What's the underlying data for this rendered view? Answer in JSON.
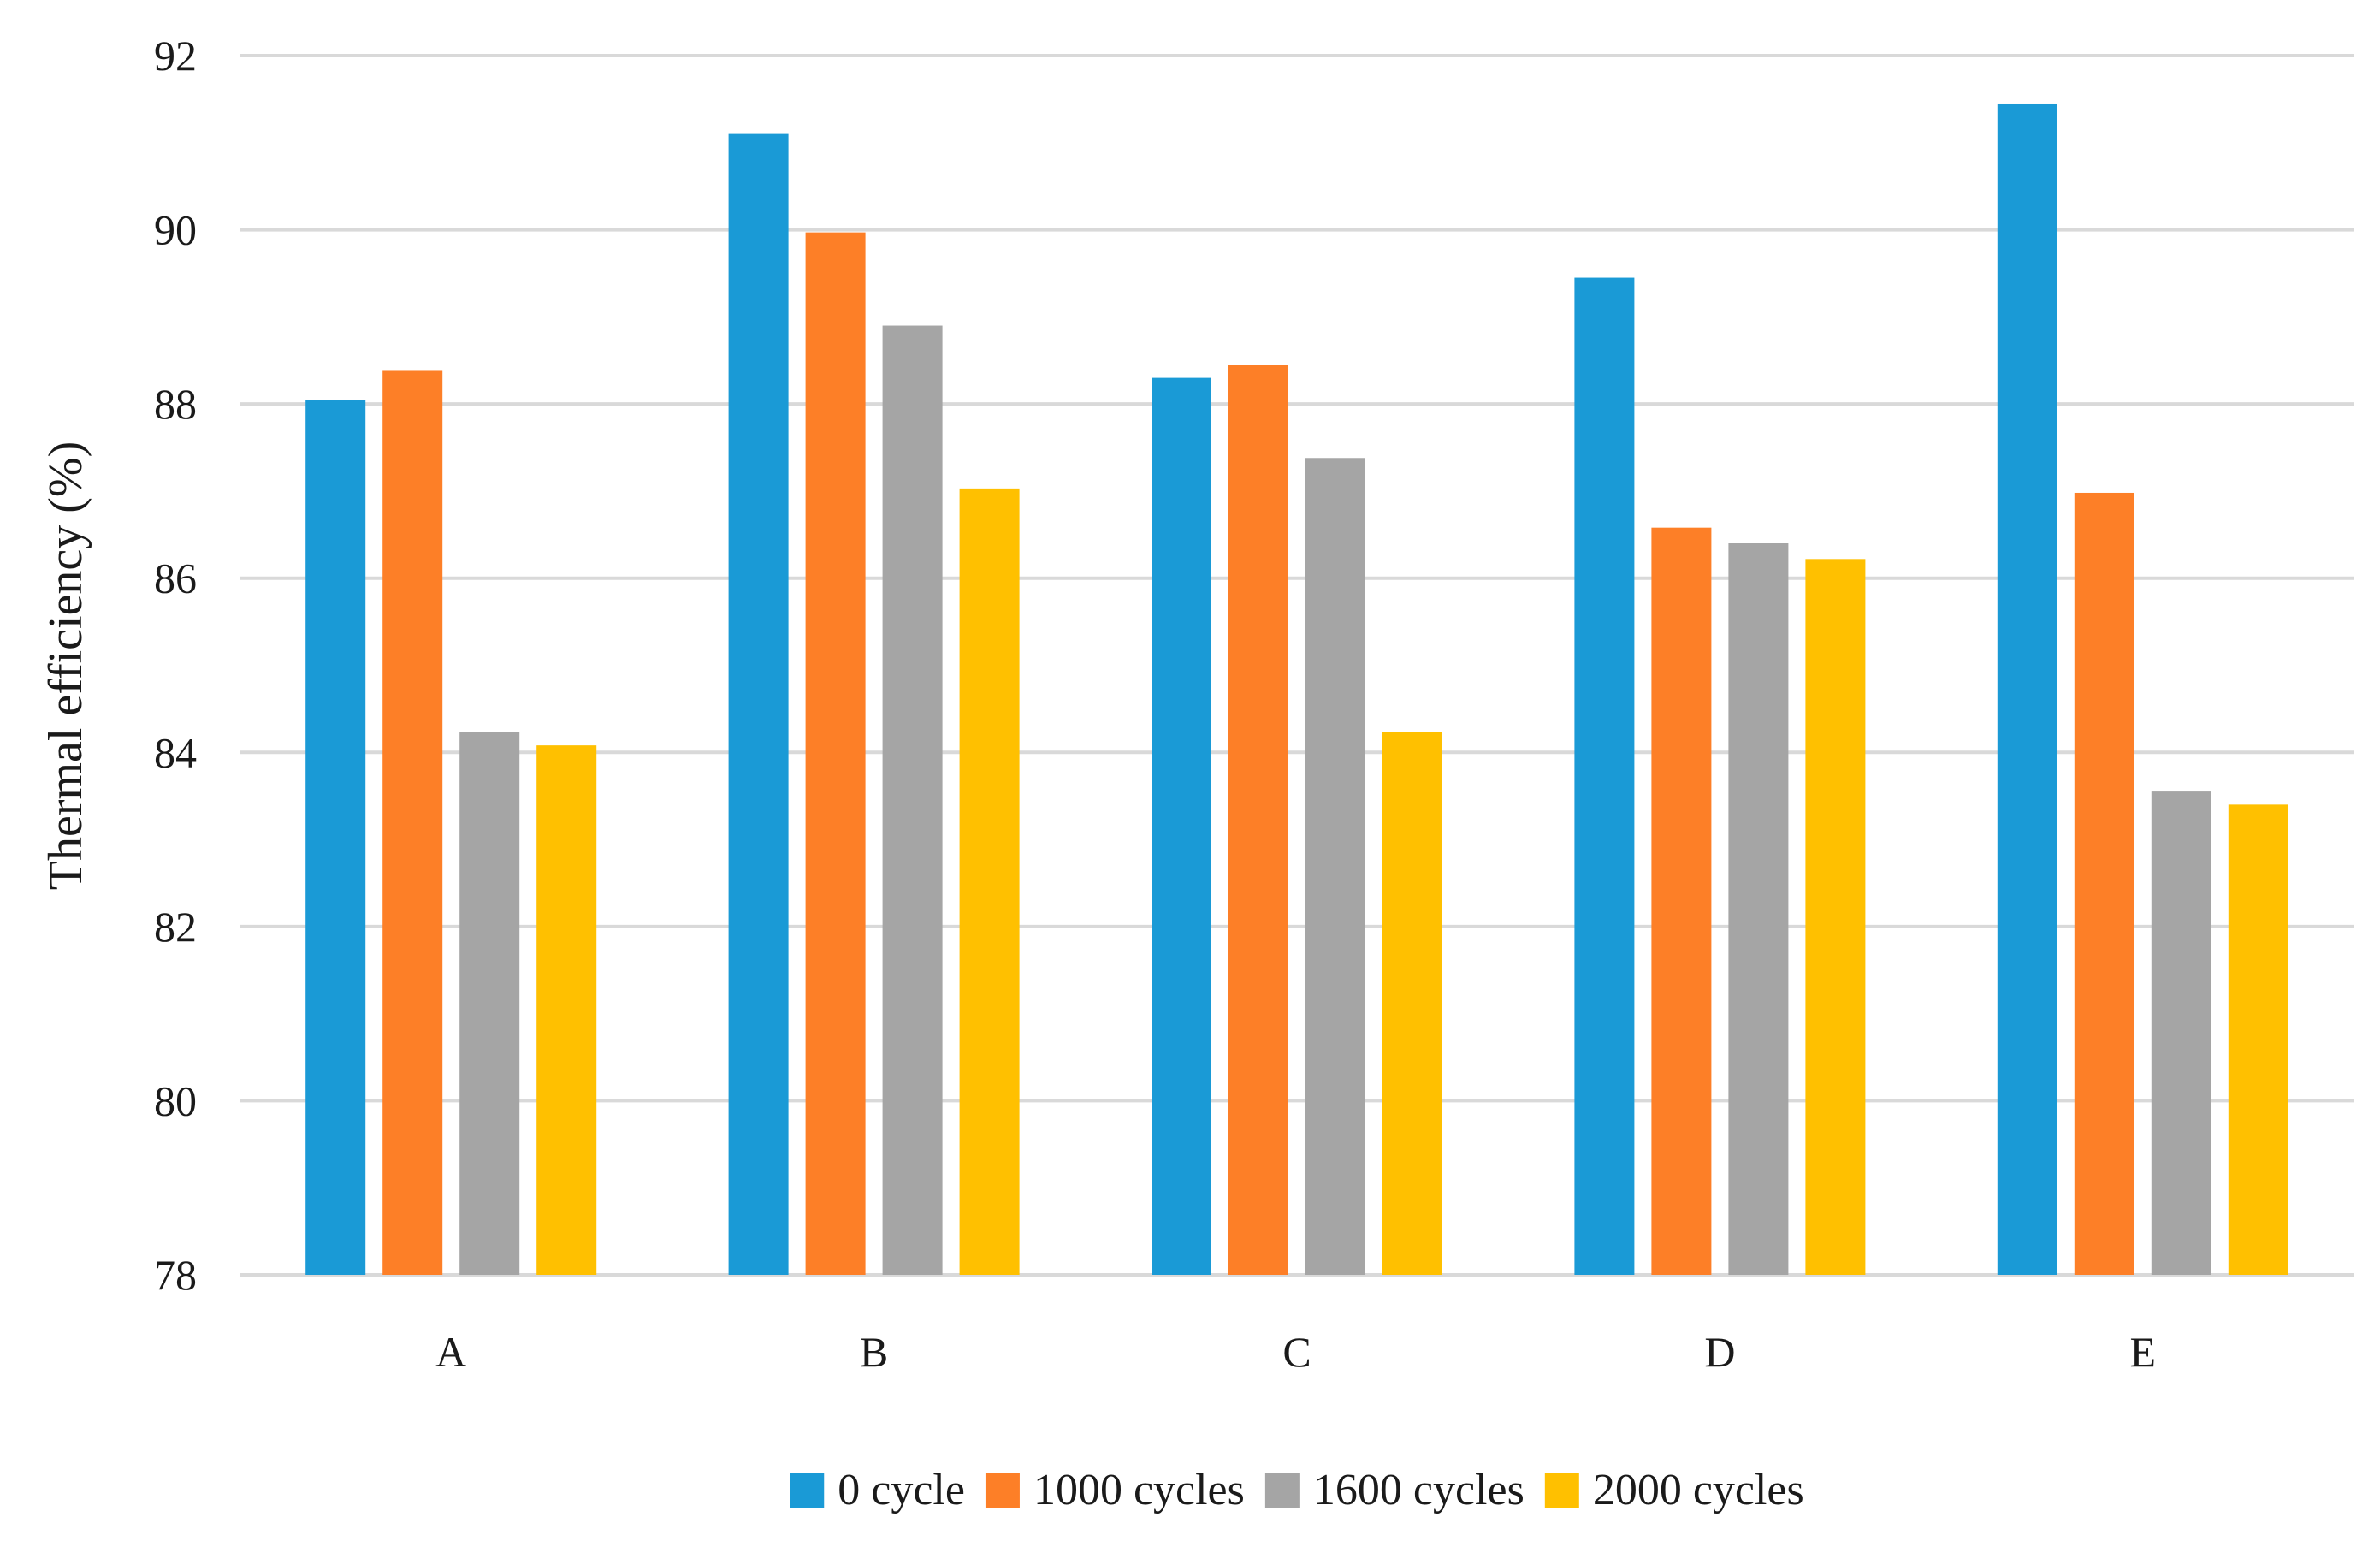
{
  "chart_data": {
    "type": "bar",
    "title": "",
    "xlabel": "",
    "ylabel": "Thermal efficiency (%)",
    "ylim": [
      78,
      92
    ],
    "yticks": [
      78,
      80,
      82,
      84,
      86,
      88,
      90,
      92
    ],
    "ytick_labels": [
      "78",
      "80",
      "82",
      "84",
      "86",
      "88",
      "90",
      "92"
    ],
    "grid": true,
    "legend_position": "bottom",
    "categories": [
      "A",
      "B",
      "C",
      "D",
      "E"
    ],
    "series": [
      {
        "name": "0 cycle",
        "color": "#1a9ad6",
        "values": [
          88.05,
          91.1,
          88.3,
          89.45,
          91.45
        ]
      },
      {
        "name": "1000 cycles",
        "color": "#fd7f27",
        "values": [
          88.38,
          89.97,
          88.45,
          86.58,
          86.98
        ]
      },
      {
        "name": "1600 cycles",
        "color": "#a5a5a5",
        "values": [
          84.23,
          88.9,
          87.38,
          86.4,
          83.55
        ]
      },
      {
        "name": "2000 cycles",
        "color": "#ffc000",
        "values": [
          84.08,
          87.03,
          84.23,
          86.22,
          83.4
        ]
      }
    ]
  },
  "colors": {
    "gridline": "#d9d9d9",
    "text": "#1a1a1a"
  }
}
